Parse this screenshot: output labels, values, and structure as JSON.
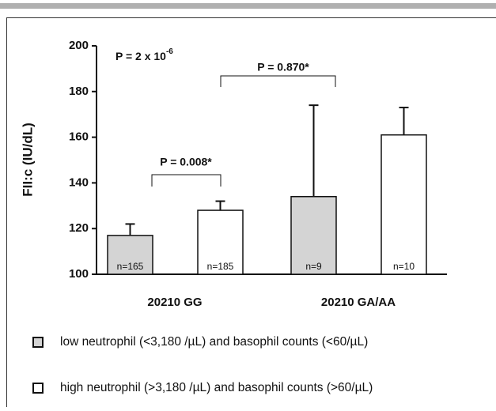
{
  "chart_data": {
    "type": "bar",
    "ylabel": "FII:c (IU/dL)",
    "categories": [
      "20210 GG",
      "20210 GA/AA"
    ],
    "series": [
      {
        "name": "low neutrophil (<3,180 /µL) and basophil counts (<60/µL)",
        "color": "#d4d4d4",
        "values": [
          117,
          134
        ],
        "errors": [
          5,
          40
        ],
        "n_labels": [
          "n=165",
          "n=9"
        ]
      },
      {
        "name": "high neutrophil (>3,180 /µL) and basophil counts (>60/µL)",
        "color": "#ffffff",
        "values": [
          128,
          161
        ],
        "errors": [
          4,
          12
        ],
        "n_labels": [
          "n=185",
          "n=10"
        ]
      }
    ],
    "ylim": [
      100,
      200
    ],
    "yticks": [
      100,
      120,
      140,
      160,
      180,
      200
    ],
    "annotations": [
      {
        "text": "P = 2 x 10",
        "superscript": "-6"
      },
      {
        "text": "P = 0.008*"
      },
      {
        "text": "P = 0.870*"
      }
    ]
  }
}
